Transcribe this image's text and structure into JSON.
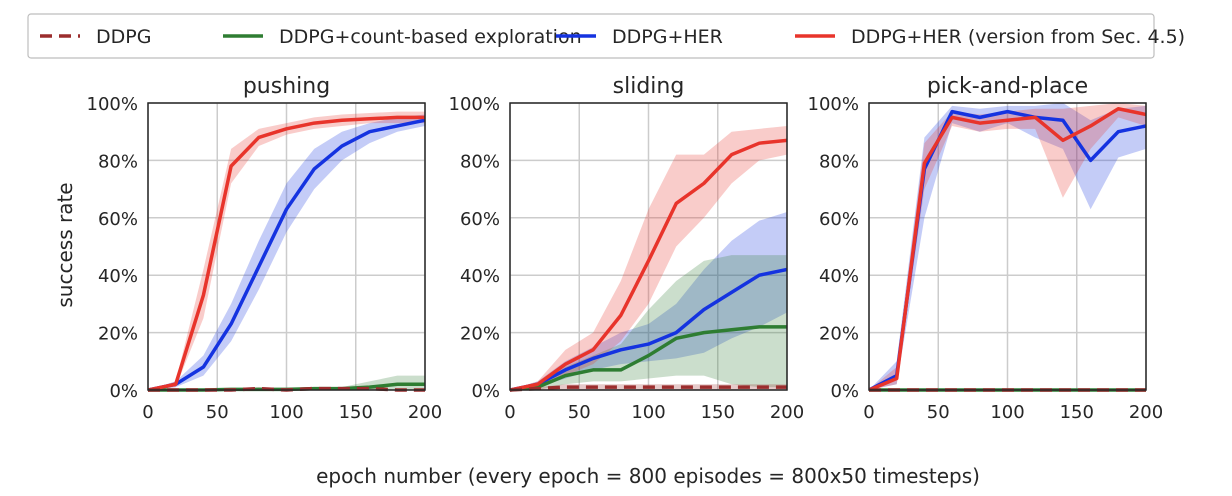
{
  "chart_data": [
    {
      "type": "line",
      "title": "pushing",
      "xlabel": "epoch number (every epoch = 800 episodes = 800x50 timesteps)",
      "ylabel": "success rate",
      "xlim": [
        0,
        200
      ],
      "ylim": [
        0,
        100
      ],
      "xticks": [
        0,
        50,
        100,
        150,
        200
      ],
      "yticks": [
        0,
        20,
        40,
        60,
        80,
        100
      ],
      "x": [
        0,
        20,
        40,
        60,
        80,
        100,
        120,
        140,
        160,
        180,
        200
      ],
      "series": [
        {
          "name": "DDPG",
          "values": [
            0,
            0,
            0,
            0,
            0.5,
            0,
            0.5,
            0.5,
            0.5,
            0,
            0
          ],
          "lower": [
            0,
            0,
            0,
            0,
            0,
            0,
            0,
            0,
            0,
            0,
            0
          ],
          "upper": [
            0,
            0,
            0,
            0,
            1,
            0,
            1,
            1,
            1,
            0,
            0
          ]
        },
        {
          "name": "DDPG+count-based exploration",
          "values": [
            0,
            0,
            0,
            0.2,
            0.2,
            0.2,
            0.5,
            0.5,
            1,
            2,
            2
          ],
          "lower": [
            0,
            0,
            0,
            0,
            0,
            0,
            0,
            0,
            0,
            0,
            0
          ],
          "upper": [
            0,
            0,
            0,
            0.5,
            0.5,
            0.5,
            1,
            1,
            3,
            5,
            5
          ]
        },
        {
          "name": "DDPG+HER",
          "values": [
            0,
            2,
            8,
            23,
            43,
            63,
            77,
            85,
            90,
            92,
            94
          ],
          "lower": [
            0,
            1,
            5,
            17,
            35,
            55,
            70,
            80,
            86,
            90,
            92
          ],
          "upper": [
            0,
            3,
            12,
            30,
            52,
            72,
            84,
            90,
            93,
            95,
            96
          ]
        },
        {
          "name": "DDPG+HER (version from Sec. 4.5)",
          "values": [
            0,
            2,
            33,
            78,
            88,
            91,
            93,
            94,
            94.5,
            95,
            95
          ],
          "lower": [
            0,
            1,
            25,
            72,
            85,
            89,
            91,
            92,
            93,
            93,
            93
          ],
          "upper": [
            0,
            3,
            42,
            84,
            91,
            93,
            95,
            96,
            96.5,
            97,
            97
          ]
        }
      ]
    },
    {
      "type": "line",
      "title": "sliding",
      "xlim": [
        0,
        200
      ],
      "ylim": [
        0,
        100
      ],
      "xticks": [
        0,
        50,
        100,
        150,
        200
      ],
      "yticks": [
        0,
        20,
        40,
        60,
        80,
        100
      ],
      "x": [
        0,
        20,
        40,
        60,
        80,
        100,
        120,
        140,
        160,
        180,
        200
      ],
      "series": [
        {
          "name": "DDPG",
          "values": [
            0,
            0.5,
            1,
            1,
            1,
            1,
            1,
            1,
            1,
            1,
            1
          ],
          "lower": [
            0,
            0,
            0,
            0,
            0,
            0,
            0,
            0,
            0,
            0,
            0
          ],
          "upper": [
            0,
            1,
            2,
            2,
            2,
            2,
            2,
            2,
            2,
            2,
            2
          ]
        },
        {
          "name": "DDPG+count-based exploration",
          "values": [
            0,
            1,
            5,
            7,
            7,
            12,
            18,
            20,
            21,
            22,
            22
          ],
          "lower": [
            0,
            0,
            2,
            3,
            3,
            4,
            5,
            5,
            2,
            1,
            1
          ],
          "upper": [
            0,
            2,
            8,
            12,
            16,
            28,
            38,
            45,
            47,
            47,
            47
          ]
        },
        {
          "name": "DDPG+HER",
          "values": [
            0,
            2,
            7,
            11,
            14,
            16,
            20,
            28,
            34,
            40,
            42
          ],
          "lower": [
            0,
            1,
            4,
            7,
            9,
            10,
            11,
            13,
            18,
            22,
            27
          ],
          "upper": [
            0,
            3,
            10,
            15,
            20,
            23,
            30,
            42,
            52,
            59,
            62
          ]
        },
        {
          "name": "DDPG+HER (version from Sec. 4.5)",
          "values": [
            0,
            2,
            9,
            14,
            26,
            45,
            65,
            72,
            82,
            86,
            87
          ],
          "lower": [
            0,
            1,
            5,
            9,
            17,
            30,
            50,
            60,
            72,
            80,
            82
          ],
          "upper": [
            0,
            3,
            14,
            20,
            38,
            63,
            82,
            82,
            90,
            91,
            92
          ]
        }
      ]
    },
    {
      "type": "line",
      "title": "pick-and-place",
      "xlim": [
        0,
        200
      ],
      "ylim": [
        0,
        100
      ],
      "xticks": [
        0,
        50,
        100,
        150,
        200
      ],
      "yticks": [
        0,
        20,
        40,
        60,
        80,
        100
      ],
      "x": [
        0,
        20,
        40,
        60,
        80,
        100,
        120,
        140,
        160,
        180,
        200
      ],
      "series": [
        {
          "name": "DDPG",
          "values": [
            0,
            0,
            0,
            0,
            0,
            0,
            0,
            0,
            0,
            0,
            0
          ],
          "lower": [
            0,
            0,
            0,
            0,
            0,
            0,
            0,
            0,
            0,
            0,
            0
          ],
          "upper": [
            0,
            0,
            0,
            0,
            0,
            0,
            0,
            0,
            0,
            0,
            0
          ]
        },
        {
          "name": "DDPG+count-based exploration",
          "values": [
            0,
            0,
            0,
            0,
            0,
            0,
            0,
            0,
            0,
            0,
            0
          ],
          "lower": [
            0,
            0,
            0,
            0,
            0,
            0,
            0,
            0,
            0,
            0,
            0
          ],
          "upper": [
            0,
            0,
            0,
            0,
            0,
            0,
            0,
            0,
            0,
            0,
            0
          ]
        },
        {
          "name": "DDPG+HER",
          "values": [
            0,
            5,
            77,
            97,
            95,
            97,
            95,
            94,
            80,
            90,
            92
          ],
          "lower": [
            0,
            2,
            60,
            93,
            90,
            93,
            88,
            84,
            63,
            81,
            84
          ],
          "upper": [
            0,
            10,
            88,
            99,
            98,
            99,
            99,
            100,
            94,
            98,
            99
          ]
        },
        {
          "name": "DDPG+HER (version from Sec. 4.5)",
          "values": [
            0,
            4,
            79,
            95,
            93,
            94,
            95,
            87,
            92,
            98,
            96
          ],
          "lower": [
            0,
            2,
            70,
            92,
            90,
            91,
            91,
            67,
            84,
            95,
            92
          ],
          "upper": [
            0,
            8,
            86,
            97,
            96,
            97,
            98,
            98,
            99,
            100,
            99
          ]
        }
      ]
    }
  ],
  "legend": {
    "placement": "top",
    "entries": [
      {
        "label": "DDPG",
        "color": "#9b2d2d",
        "dashed": true
      },
      {
        "label": "DDPG+count-based exploration",
        "color": "#2e7d32",
        "dashed": false
      },
      {
        "label": "DDPG+HER",
        "color": "#1533e0",
        "dashed": false
      },
      {
        "label": "DDPG+HER (version from Sec. 4.5)",
        "color": "#e8342b",
        "dashed": false
      }
    ]
  },
  "colors": {
    "DDPG": "#9b2d2d",
    "DDPG+count-based exploration": "#2e7d32",
    "DDPG+HER": "#1533e0",
    "DDPG+HER (version from Sec. 4.5)": "#e8342b",
    "grid": "#cccccc",
    "axes": "#262626"
  }
}
